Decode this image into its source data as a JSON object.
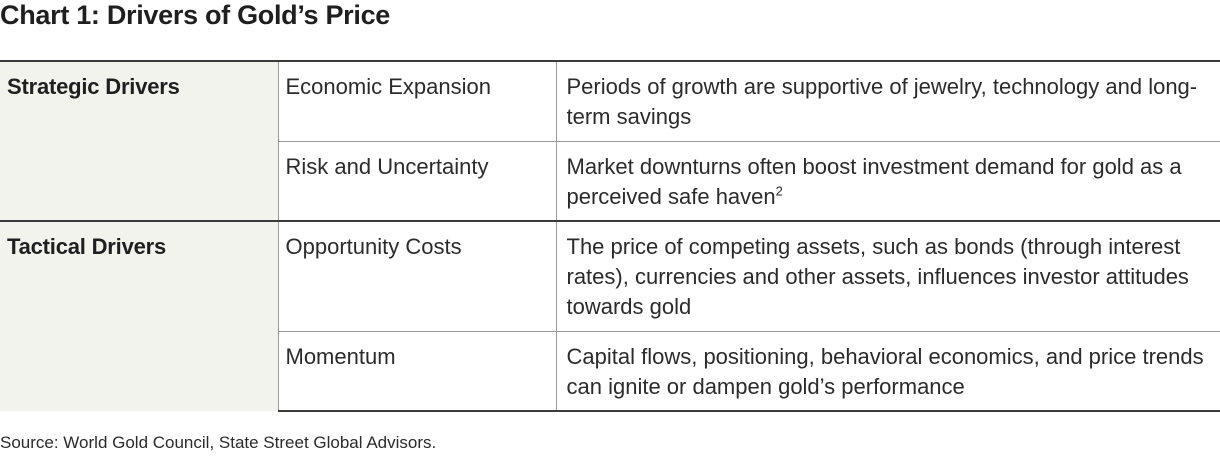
{
  "title": "Chart 1: Drivers of Gold’s Price",
  "groups": [
    {
      "label": "Strategic Drivers",
      "rows": [
        {
          "driver": "Economic Expansion",
          "description": "Periods of growth are supportive of jewelry, technology and long-term savings",
          "footnote": ""
        },
        {
          "driver": "Risk and Uncertainty",
          "description": "Market downturns often boost investment demand for gold as a perceived  safe haven",
          "footnote": "2"
        }
      ]
    },
    {
      "label": "Tactical Drivers",
      "rows": [
        {
          "driver": "Opportunity Costs",
          "description": "The price of competing assets, such as bonds (through interest rates), currencies and other assets, influences investor attitudes towards gold",
          "footnote": ""
        },
        {
          "driver": "Momentum",
          "description": "Capital flows, positioning, behavioral economics, and price trends can ignite or dampen gold’s performance",
          "footnote": ""
        }
      ]
    }
  ],
  "source": "Source: World Gold Council, State Street Global Advisors.",
  "colors": {
    "group_cell_background": "#f2f3ec",
    "text": "#2b2b2b",
    "rule_major": "#3a3a3a",
    "rule_minor": "#9a9a9a"
  }
}
